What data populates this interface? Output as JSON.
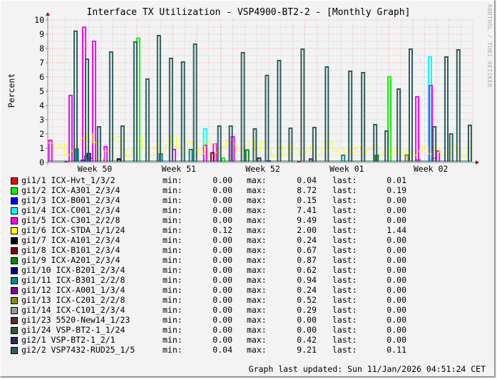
{
  "chart_data": {
    "type": "line",
    "title": "Interface TX Utilization - VSP4900-BT2-2 - [Monthly Graph]",
    "ylabel": "Percent",
    "xlabel": "",
    "ylim": [
      0,
      10
    ],
    "yticks": [
      "0",
      "1",
      "2",
      "3",
      "4",
      "5",
      "6",
      "7",
      "8",
      "9",
      "10"
    ],
    "x_unit": "days since start of Week 50",
    "xlim": [
      -0.42,
      35.0
    ],
    "xticks": [
      {
        "label": "Week 50",
        "day": 3.5
      },
      {
        "label": "Week 51",
        "day": 10.5
      },
      {
        "label": "Week 52",
        "day": 17.5
      },
      {
        "label": "Week 01",
        "day": 24.5
      },
      {
        "label": "Week 02",
        "day": 31.5
      }
    ],
    "grid": true,
    "watermark": "RRDTOOL / TOBI OETIKER",
    "series": [
      {
        "name": "gi1/1 ICX-Hvt_1/3/2",
        "color": "#ff0000",
        "min": "0.00",
        "max": "0.04",
        "last": "0.01",
        "spikes": [
          [
            1.1,
            0.04
          ],
          [
            20.5,
            0.03
          ]
        ]
      },
      {
        "name": "gi1/2 ICX-A301_2/3/4",
        "color": "#00ff00",
        "min": "0.00",
        "max": "8.72",
        "last": "0.19",
        "spikes": [
          [
            7.12,
            8.72
          ],
          [
            28.05,
            6.0
          ],
          [
            3.2,
            0.3
          ],
          [
            14.2,
            0.3
          ],
          [
            30.5,
            0.2
          ]
        ]
      },
      {
        "name": "gi1/3 ICX-B001_2/3/4",
        "color": "#0000ff",
        "min": "0.00",
        "max": "0.15",
        "last": "0.00",
        "spikes": [
          [
            2.5,
            0.15
          ],
          [
            18.0,
            0.1
          ]
        ]
      },
      {
        "name": "gi1/4 ICX-C001_2/3/4",
        "color": "#00ffff",
        "min": "0.00",
        "max": "7.41",
        "last": "0.00",
        "spikes": [
          [
            12.69,
            2.35
          ],
          [
            31.43,
            7.41
          ],
          [
            2.0,
            0.8
          ]
        ]
      },
      {
        "name": "gi1/5 ICX-C301_2/2/8",
        "color": "#ff00ff",
        "min": "0.00",
        "max": "9.49",
        "last": "0.00",
        "spikes": [
          [
            -0.2,
            1.55
          ],
          [
            1.48,
            4.7
          ],
          [
            2.61,
            9.49
          ],
          [
            3.44,
            8.5
          ],
          [
            4.4,
            1.1
          ],
          [
            10.1,
            0.9
          ],
          [
            12.7,
            1.2
          ],
          [
            13.5,
            1.3
          ],
          [
            15.0,
            1.8
          ],
          [
            30.37,
            4.6
          ],
          [
            31.5,
            5.4
          ],
          [
            32.1,
            0.8
          ]
        ]
      },
      {
        "name": "gi1/6 ICX-STDA_1/1/24",
        "color": "#ffff00",
        "min": "0.12",
        "max": "2.00",
        "last": "1.44",
        "line": [
          1.35,
          1.0,
          1.3,
          0.5,
          0.8,
          1.2,
          1.7,
          2.0,
          1.4,
          0.3,
          0.8,
          1.6,
          1.8,
          0.9,
          0.4,
          1.0,
          1.7,
          1.0,
          0.5,
          1.1,
          0.8,
          1.2,
          1.8,
          1.1,
          0.6,
          1.4,
          1.0,
          0.6,
          1.5,
          1.3,
          0.7,
          1.1,
          1.6,
          1.3,
          0.8,
          1.2,
          1.5,
          0.8,
          1.4,
          1.0,
          0.4,
          1.1,
          0.6,
          1.3,
          0.9,
          0.5,
          0.8,
          1.2,
          0.6,
          1.0,
          1.4,
          0.8,
          0.5,
          1.0,
          0.7,
          1.1,
          0.6,
          0.9,
          1.2,
          0.5,
          0.8,
          0.6,
          1.0,
          0.7,
          0.9,
          0.5,
          0.8,
          1.1,
          0.6,
          1.0,
          0.7,
          0.5,
          1.2,
          0.8,
          0.4,
          1.3
        ]
      },
      {
        "name": "gi1/7 ICX-A101_2/3/4",
        "color": "#000000",
        "min": "0.00",
        "max": "0.24",
        "last": "0.00",
        "spikes": [
          [
            5.5,
            0.24
          ]
        ]
      },
      {
        "name": "gi1/8 ICX-B101_2/3/4",
        "color": "#8b0000",
        "min": "0.00",
        "max": "0.67",
        "last": "0.00",
        "spikes": [
          [
            13.3,
            0.67
          ]
        ]
      },
      {
        "name": "gi1/9 ICX-A201_2/3/4",
        "color": "#008b00",
        "min": "0.00",
        "max": "0.87",
        "last": "0.00",
        "spikes": [
          [
            16.2,
            0.87
          ],
          [
            27.0,
            0.5
          ]
        ]
      },
      {
        "name": "gi1/10 ICX-B201_2/3/4",
        "color": "#00008b",
        "min": "0.00",
        "max": "0.62",
        "last": "0.00",
        "spikes": [
          [
            3.0,
            0.62
          ]
        ]
      },
      {
        "name": "gi1/11 ICX-B301_2/2/8",
        "color": "#008b8b",
        "min": "0.00",
        "max": "0.94",
        "last": "0.00",
        "spikes": [
          [
            2.0,
            0.94
          ],
          [
            9.0,
            0.6
          ],
          [
            11.5,
            0.9
          ],
          [
            24.2,
            0.5
          ]
        ]
      },
      {
        "name": "gi1/12 ICX-A001_1/3/4",
        "color": "#8b008b",
        "min": "0.00",
        "max": "0.24",
        "last": "0.00",
        "spikes": [
          [
            21.5,
            0.24
          ]
        ]
      },
      {
        "name": "gi1/13 ICX-C201_2/2/8",
        "color": "#8b8b00",
        "min": "0.00",
        "max": "0.52",
        "last": "0.00",
        "spikes": [
          [
            29.5,
            0.52
          ]
        ]
      },
      {
        "name": "gi1/14 ICX-C101_2/3/4",
        "color": "#999999",
        "min": "0.00",
        "max": "0.29",
        "last": "0.00",
        "spikes": [
          [
            31.8,
            0.29
          ]
        ]
      },
      {
        "name": "gi1/23 5520-New14_1/23",
        "color": "#5e2b2b",
        "min": "0.00",
        "max": "0.00",
        "last": "0.00"
      },
      {
        "name": "gi1/24 VSP-BT2-1_1/24",
        "color": "#2b5e2b",
        "min": "0.00",
        "max": "0.00",
        "last": "0.00"
      },
      {
        "name": "gi2/1 VSP-BT2-1_2/1",
        "color": "#2b2b5e",
        "min": "0.00",
        "max": "0.42",
        "last": "0.00",
        "spikes": [
          [
            2.8,
            0.42
          ],
          [
            17.2,
            0.3
          ]
        ]
      },
      {
        "name": "gi2/2 VSP7432-RUD25_1/5",
        "color": "#2b5e5e",
        "min": "0.04",
        "max": "9.21",
        "last": "0.11",
        "spikes": [
          [
            1.9,
            9.21
          ],
          [
            2.85,
            7.25
          ],
          [
            3.85,
            2.5
          ],
          [
            4.86,
            7.75
          ],
          [
            5.81,
            2.55
          ],
          [
            6.88,
            8.45
          ],
          [
            7.89,
            5.85
          ],
          [
            8.84,
            8.9
          ],
          [
            9.85,
            7.3
          ],
          [
            10.85,
            7.05
          ],
          [
            11.86,
            8.3
          ],
          [
            13.88,
            2.55
          ],
          [
            14.83,
            2.55
          ],
          [
            15.84,
            7.7
          ],
          [
            16.84,
            2.35
          ],
          [
            17.85,
            6.1
          ],
          [
            18.86,
            7.15
          ],
          [
            19.81,
            2.4
          ],
          [
            20.82,
            7.95
          ],
          [
            21.8,
            2.45
          ],
          [
            22.84,
            6.7
          ],
          [
            24.79,
            6.4
          ],
          [
            25.86,
            6.3
          ],
          [
            26.87,
            2.65
          ],
          [
            27.82,
            2.2
          ],
          [
            28.83,
            5.15
          ],
          [
            29.83,
            7.95
          ],
          [
            31.8,
            2.5
          ],
          [
            32.8,
            7.4
          ],
          [
            33.2,
            2.0
          ],
          [
            33.8,
            7.9
          ],
          [
            34.76,
            2.6
          ]
        ]
      }
    ],
    "legend_labels": {
      "min": "min:",
      "max": "max:",
      "last": "last:"
    }
  },
  "footer": "Graph last updated: Sun 11/Jan/2026 04:51:24 CET"
}
